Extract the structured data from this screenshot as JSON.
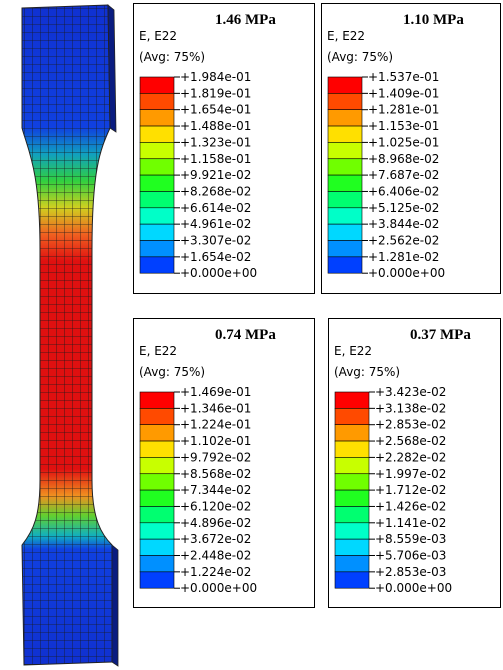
{
  "legends": [
    {
      "title": "1.46 MPa",
      "variable": "E, E22",
      "average": "(Avg: 75%)",
      "values": [
        "+1.984e-01",
        "+1.819e-01",
        "+1.654e-01",
        "+1.488e-01",
        "+1.323e-01",
        "+1.158e-01",
        "+9.921e-02",
        "+8.268e-02",
        "+6.614e-02",
        "+4.961e-02",
        "+3.307e-02",
        "+1.654e-02",
        "+0.000e+00"
      ]
    },
    {
      "title": "1.10 MPa",
      "variable": "E, E22",
      "average": "(Avg: 75%)",
      "values": [
        "+1.537e-01",
        "+1.409e-01",
        "+1.281e-01",
        "+1.153e-01",
        "+1.025e-01",
        "+8.968e-02",
        "+7.687e-02",
        "+6.406e-02",
        "+5.125e-02",
        "+3.844e-02",
        "+2.562e-02",
        "+1.281e-02",
        "+0.000e+00"
      ]
    },
    {
      "title": "0.74 MPa",
      "variable": "E, E22",
      "average": "(Avg: 75%)",
      "values": [
        "+1.469e-01",
        "+1.346e-01",
        "+1.224e-01",
        "+1.102e-01",
        "+9.792e-02",
        "+8.568e-02",
        "+7.344e-02",
        "+6.120e-02",
        "+4.896e-02",
        "+3.672e-02",
        "+2.448e-02",
        "+1.224e-02",
        "+0.000e+00"
      ]
    },
    {
      "title": "0.37 MPa",
      "variable": "E, E22",
      "average": "(Avg: 75%)",
      "values": [
        "+3.423e-02",
        "+3.138e-02",
        "+2.853e-02",
        "+2.568e-02",
        "+2.282e-02",
        "+1.997e-02",
        "+1.712e-02",
        "+1.426e-02",
        "+1.141e-02",
        "+8.559e-03",
        "+5.706e-03",
        "+2.853e-03",
        "+0.000e+00"
      ]
    }
  ]
}
